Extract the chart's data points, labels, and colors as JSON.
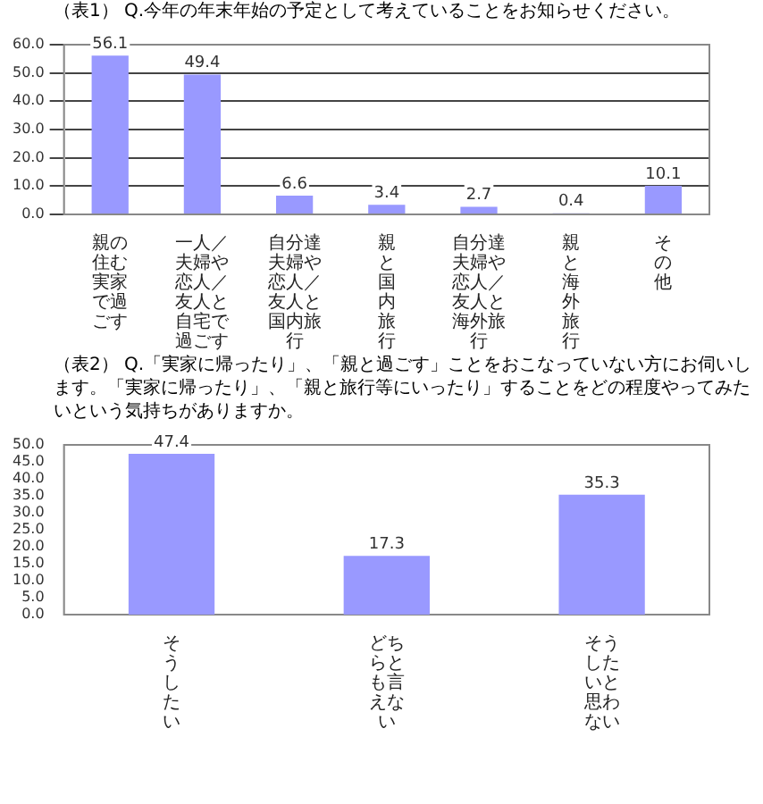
{
  "chart_data": [
    {
      "type": "bar",
      "title": "（表1） Q.今年の年末年始の予定として考えていることをお知らせください。",
      "categories": [
        "親の住む実家で過ごす",
        "一人／夫婦や恋人／友人と自宅で過ごす",
        "自分達夫婦や恋人／友人と国内旅行",
        "親と国内旅行",
        "自分達夫婦や恋人／友人と海外旅行",
        "親と海外旅行",
        "その他"
      ],
      "values": [
        56.1,
        49.4,
        6.6,
        3.4,
        2.7,
        0.4,
        10.1
      ],
      "color": "#9999ff",
      "ylim": [
        0,
        60
      ],
      "yticks": [
        {
          "value": 0,
          "label": "0.0"
        },
        {
          "value": 10,
          "label": "10.0"
        },
        {
          "value": 20,
          "label": "20.0"
        },
        {
          "value": 30,
          "label": "30.0"
        },
        {
          "value": 40,
          "label": "40.0"
        },
        {
          "value": 50,
          "label": "50.0"
        },
        {
          "value": 60,
          "label": "60.0"
        }
      ],
      "grid": "y",
      "data_labels": true
    },
    {
      "type": "bar",
      "title": "（表2） Q.「実家に帰ったり」、「親と過ごす」ことをおこなっていない方にお伺いします。「実家に帰ったり」、「親と旅行等にいったり」することをどの程度やってみたいという気持ちがありますか。",
      "categories": [
        "そうしたい",
        "どちらとも言えない",
        "そうしたいと思わない"
      ],
      "values": [
        47.4,
        17.3,
        35.3
      ],
      "color": "#9999ff",
      "ylim": [
        0,
        50
      ],
      "yticks": [
        {
          "value": 0,
          "label": "0.0"
        },
        {
          "value": 5,
          "label": "5.0"
        },
        {
          "value": 10,
          "label": "10.0"
        },
        {
          "value": 15,
          "label": "15.0"
        },
        {
          "value": 20,
          "label": "20.0"
        },
        {
          "value": 25,
          "label": "25.0"
        },
        {
          "value": 30,
          "label": "30.0"
        },
        {
          "value": 35,
          "label": "35.0"
        },
        {
          "value": 40,
          "label": "40.0"
        },
        {
          "value": 45,
          "label": "45.0"
        },
        {
          "value": 50,
          "label": "50.0"
        }
      ],
      "data_labels": true
    }
  ]
}
